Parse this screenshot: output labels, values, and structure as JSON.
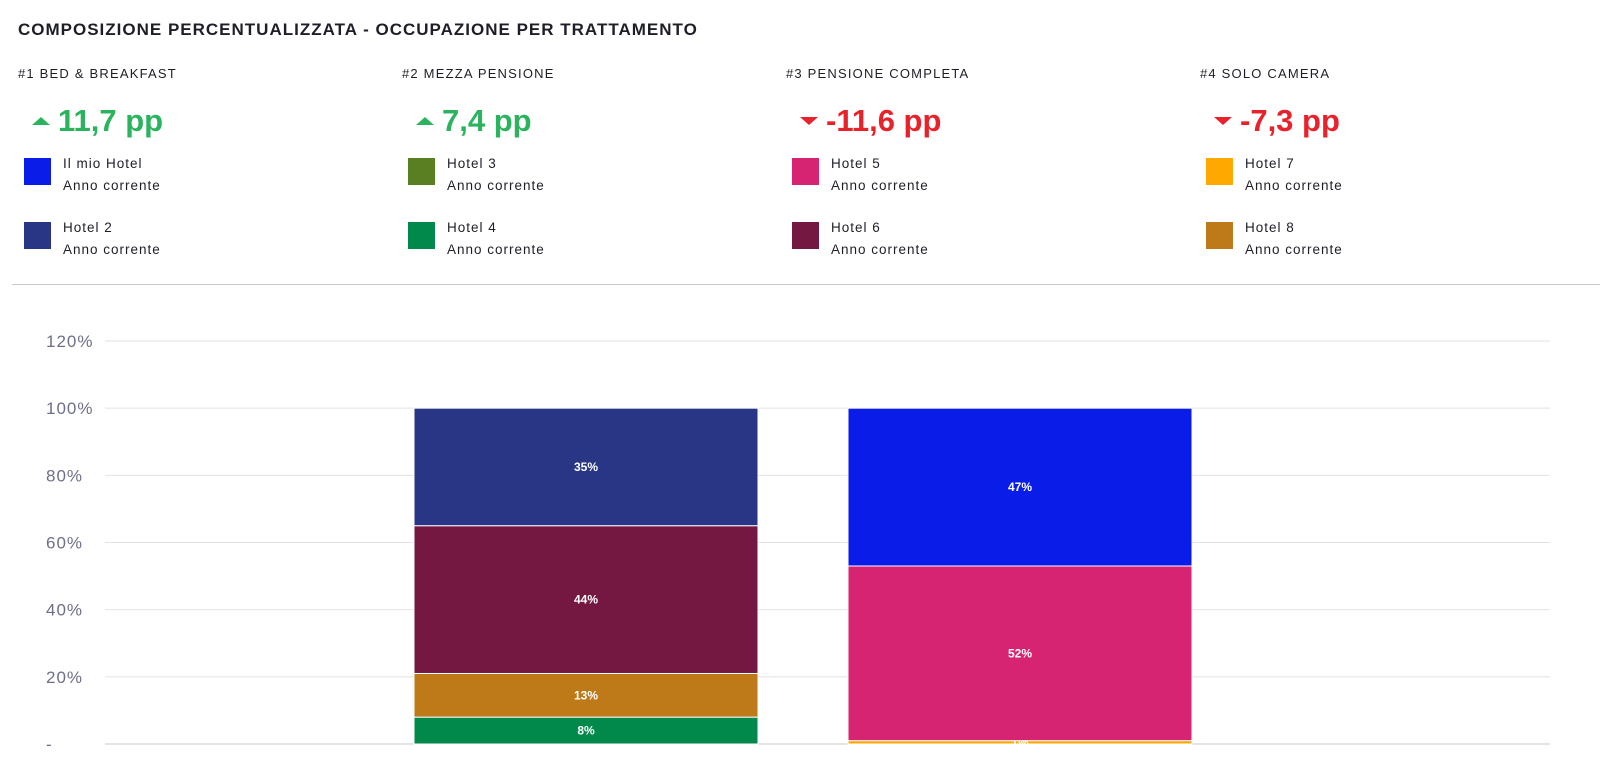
{
  "title": "COMPOSIZIONE PERCENTUALIZZATA - OCCUPAZIONE PER TRATTAMENTO",
  "groups": [
    {
      "name": "#1 BED & BREAKFAST",
      "delta": "11,7 pp",
      "direction": "up",
      "color": "#2bb35e",
      "legend": [
        {
          "name": "Il mio Hotel",
          "sub": "Anno corrente",
          "color": "#0a1de8"
        },
        {
          "name": "Hotel 2",
          "sub": "Anno corrente",
          "color": "#283685"
        }
      ]
    },
    {
      "name": "#2 MEZZA PENSIONE",
      "delta": "7,4 pp",
      "direction": "up",
      "color": "#2bb35e",
      "legend": [
        {
          "name": "Hotel 3",
          "sub": "Anno corrente",
          "color": "#5a7e22"
        },
        {
          "name": "Hotel 4",
          "sub": "Anno corrente",
          "color": "#00894a"
        }
      ]
    },
    {
      "name": "#3 PENSIONE COMPLETA",
      "delta": "-11,6 pp",
      "direction": "down",
      "color": "#e8222a",
      "legend": [
        {
          "name": "Hotel 5",
          "sub": "Anno corrente",
          "color": "#d62472"
        },
        {
          "name": "Hotel 6",
          "sub": "Anno corrente",
          "color": "#741842"
        }
      ]
    },
    {
      "name": "#4 SOLO CAMERA",
      "delta": "-7,3 pp",
      "direction": "down",
      "color": "#e8222a",
      "legend": [
        {
          "name": "Hotel 7",
          "sub": "Anno corrente",
          "color": "#ffa800"
        },
        {
          "name": "Hotel 8",
          "sub": "Anno corrente",
          "color": "#be7a19"
        }
      ]
    }
  ],
  "chart_data": {
    "type": "bar",
    "stacked": true,
    "ylim": [
      0,
      120
    ],
    "yticks": [
      "-",
      "20%",
      "40%",
      "60%",
      "80%",
      "100%",
      "120%"
    ],
    "grid": true,
    "bars": [
      {
        "segments": [
          {
            "series": "Hotel 4",
            "value": 8,
            "label": "8%",
            "color": "#00894a"
          },
          {
            "series": "Hotel 8",
            "value": 13,
            "label": "13%",
            "color": "#be7a19"
          },
          {
            "series": "Hotel 6",
            "value": 44,
            "label": "44%",
            "color": "#741842"
          },
          {
            "series": "Hotel 2",
            "value": 35,
            "label": "35%",
            "color": "#283685"
          }
        ]
      },
      {
        "segments": [
          {
            "series": "Hotel 7",
            "value": 1,
            "label": "1%",
            "color": "#ffa800"
          },
          {
            "series": "Hotel 5",
            "value": 52,
            "label": "52%",
            "color": "#d62472"
          },
          {
            "series": "Il mio Hotel",
            "value": 47,
            "label": "47%",
            "color": "#0a1de8"
          }
        ]
      }
    ]
  }
}
